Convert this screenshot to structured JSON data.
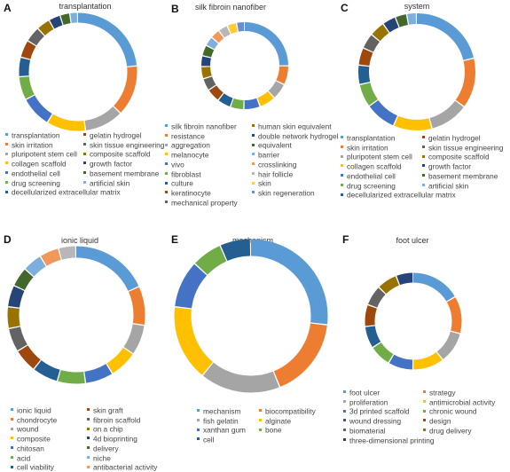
{
  "chart_data": [
    {
      "id": "A",
      "type": "pie",
      "letter": "A",
      "title": "transplantation",
      "slices": [
        {
          "label": "transplantation",
          "value": 22.0,
          "color": "#5B9BD5"
        },
        {
          "label": "skin irritation",
          "value": 13.0,
          "color": "#ED7D31"
        },
        {
          "label": "pluripotent stem cell",
          "value": 10.0,
          "color": "#A5A5A5"
        },
        {
          "label": "collagen scaffold",
          "value": 10.0,
          "color": "#FFC000"
        },
        {
          "label": "endothelial cell",
          "value": 8.0,
          "color": "#4472C4"
        },
        {
          "label": "drug screening",
          "value": 6.0,
          "color": "#70AD47"
        },
        {
          "label": "decellularized extracellular matrix",
          "value": 5.0,
          "color": "#255E91"
        },
        {
          "label": "gelatin hydrogel",
          "value": 4.5,
          "color": "#9E480E"
        },
        {
          "label": "skin tissue engineering",
          "value": 4.0,
          "color": "#636363"
        },
        {
          "label": "composite scaffold",
          "value": 3.5,
          "color": "#997300"
        },
        {
          "label": "growth factor",
          "value": 3.0,
          "color": "#264478"
        },
        {
          "label": "basement membrane",
          "value": 2.5,
          "color": "#43682B"
        },
        {
          "label": "artificial skin",
          "value": 2.0,
          "color": "#7CAFDD"
        }
      ],
      "legend_layout": [
        {
          "i": 0,
          "col": 0,
          "row": 0
        },
        {
          "i": 1,
          "col": 0,
          "row": 1
        },
        {
          "i": 2,
          "col": 0,
          "row": 2
        },
        {
          "i": 3,
          "col": 0,
          "row": 3
        },
        {
          "i": 4,
          "col": 0,
          "row": 4
        },
        {
          "i": 5,
          "col": 0,
          "row": 5
        },
        {
          "i": 6,
          "col": 0,
          "row": 6
        },
        {
          "i": 7,
          "col": 1,
          "row": 0
        },
        {
          "i": 8,
          "col": 1,
          "row": 1
        },
        {
          "i": 9,
          "col": 1,
          "row": 2
        },
        {
          "i": 10,
          "col": 1,
          "row": 3
        },
        {
          "i": 11,
          "col": 1,
          "row": 4
        },
        {
          "i": 12,
          "col": 1,
          "row": 5
        }
      ]
    },
    {
      "id": "B",
      "type": "pie",
      "letter": "B",
      "title": "silk fibroin nanofiber",
      "slices": [
        {
          "label": "silk fibroin nanofiber",
          "value": 25.0,
          "color": "#5B9BD5"
        },
        {
          "label": "resistance",
          "value": 7.0,
          "color": "#ED7D31"
        },
        {
          "label": "aggregation",
          "value": 6.0,
          "color": "#A5A5A5"
        },
        {
          "label": "melanocyte",
          "value": 6.0,
          "color": "#FFC000"
        },
        {
          "label": "vivo",
          "value": 6.0,
          "color": "#4472C4"
        },
        {
          "label": "fibroblast",
          "value": 5.0,
          "color": "#70AD47"
        },
        {
          "label": "culture",
          "value": 5.0,
          "color": "#255E91"
        },
        {
          "label": "keratinocyte",
          "value": 5.0,
          "color": "#9E480E"
        },
        {
          "label": "mechanical property",
          "value": 4.5,
          "color": "#636363"
        },
        {
          "label": "human skin equivalent",
          "value": 4.5,
          "color": "#997300"
        },
        {
          "label": "double network hydrogel",
          "value": 4.0,
          "color": "#264478"
        },
        {
          "label": "equivalent",
          "value": 4.0,
          "color": "#43682B"
        },
        {
          "label": "barrier",
          "value": 3.5,
          "color": "#7CAFDD"
        },
        {
          "label": "crosslinking",
          "value": 3.5,
          "color": "#F1975A"
        },
        {
          "label": "hair follicle",
          "value": 3.5,
          "color": "#B7B7B7"
        },
        {
          "label": "skin",
          "value": 3.5,
          "color": "#FFCD33"
        },
        {
          "label": "skin regeneration",
          "value": 3.0,
          "color": "#698ED0"
        }
      ],
      "legend_layout": [
        {
          "i": 0,
          "col": 0,
          "row": 0
        },
        {
          "i": 1,
          "col": 0,
          "row": 1
        },
        {
          "i": 2,
          "col": 0,
          "row": 2
        },
        {
          "i": 3,
          "col": 0,
          "row": 3
        },
        {
          "i": 4,
          "col": 0,
          "row": 4
        },
        {
          "i": 5,
          "col": 0,
          "row": 5
        },
        {
          "i": 6,
          "col": 0,
          "row": 6
        },
        {
          "i": 7,
          "col": 0,
          "row": 7
        },
        {
          "i": 8,
          "col": 0,
          "row": 8
        },
        {
          "i": 9,
          "col": 1,
          "row": 0
        },
        {
          "i": 10,
          "col": 1,
          "row": 1
        },
        {
          "i": 11,
          "col": 1,
          "row": 2
        },
        {
          "i": 12,
          "col": 1,
          "row": 3
        },
        {
          "i": 13,
          "col": 1,
          "row": 4
        },
        {
          "i": 14,
          "col": 1,
          "row": 5
        },
        {
          "i": 15,
          "col": 1,
          "row": 6
        },
        {
          "i": 16,
          "col": 1,
          "row": 7
        }
      ]
    },
    {
      "id": "C",
      "type": "pie",
      "letter": "C",
      "title": "system",
      "slices": [
        {
          "label": "transplantation",
          "value": 20.0,
          "color": "#5B9BD5"
        },
        {
          "label": "skin irritation",
          "value": 13.0,
          "color": "#ED7D31"
        },
        {
          "label": "pluripotent stem cell",
          "value": 10.0,
          "color": "#A5A5A5"
        },
        {
          "label": "collagen scaffold",
          "value": 10.0,
          "color": "#FFC000"
        },
        {
          "label": "endothelial cell",
          "value": 8.0,
          "color": "#4472C4"
        },
        {
          "label": "drug screening",
          "value": 6.0,
          "color": "#70AD47"
        },
        {
          "label": "decellularized extracellular matrix",
          "value": 5.0,
          "color": "#255E91"
        },
        {
          "label": "gelatin hydrogel",
          "value": 4.5,
          "color": "#9E480E"
        },
        {
          "label": "skin tissue engineering",
          "value": 4.0,
          "color": "#636363"
        },
        {
          "label": "composite scaffold",
          "value": 4.0,
          "color": "#997300"
        },
        {
          "label": "growth factor",
          "value": 3.5,
          "color": "#264478"
        },
        {
          "label": "basement membrane",
          "value": 3.0,
          "color": "#43682B"
        },
        {
          "label": "artificial skin",
          "value": 2.5,
          "color": "#7CAFDD"
        }
      ],
      "legend_layout": [
        {
          "i": 0,
          "col": 0,
          "row": 0
        },
        {
          "i": 1,
          "col": 0,
          "row": 1
        },
        {
          "i": 2,
          "col": 0,
          "row": 2
        },
        {
          "i": 3,
          "col": 0,
          "row": 3
        },
        {
          "i": 4,
          "col": 0,
          "row": 4
        },
        {
          "i": 5,
          "col": 0,
          "row": 5
        },
        {
          "i": 6,
          "col": 0,
          "row": 6
        },
        {
          "i": 7,
          "col": 1,
          "row": 0
        },
        {
          "i": 8,
          "col": 1,
          "row": 1
        },
        {
          "i": 9,
          "col": 1,
          "row": 2
        },
        {
          "i": 10,
          "col": 1,
          "row": 3
        },
        {
          "i": 11,
          "col": 1,
          "row": 4
        },
        {
          "i": 12,
          "col": 1,
          "row": 5
        }
      ]
    },
    {
      "id": "D",
      "type": "pie",
      "letter": "D",
      "title": "ionic liquid",
      "slices": [
        {
          "label": "ionic liquid",
          "value": 18.0,
          "color": "#5B9BD5"
        },
        {
          "label": "chondrocyte",
          "value": 9.0,
          "color": "#ED7D31"
        },
        {
          "label": "wound",
          "value": 7.0,
          "color": "#A5A5A5"
        },
        {
          "label": "composite",
          "value": 6.5,
          "color": "#FFC000"
        },
        {
          "label": "chitosan",
          "value": 6.5,
          "color": "#4472C4"
        },
        {
          "label": "acid",
          "value": 6.5,
          "color": "#70AD47"
        },
        {
          "label": "cell viability",
          "value": 6.0,
          "color": "#255E91"
        },
        {
          "label": "skin graft",
          "value": 5.5,
          "color": "#9E480E"
        },
        {
          "label": "fibroin scaffold",
          "value": 5.5,
          "color": "#636363"
        },
        {
          "label": "on a chip",
          "value": 5.0,
          "color": "#997300"
        },
        {
          "label": "4d bioprinting",
          "value": 5.0,
          "color": "#264478"
        },
        {
          "label": "delivery",
          "value": 4.5,
          "color": "#43682B"
        },
        {
          "label": "niche",
          "value": 4.5,
          "color": "#7CAFDD"
        },
        {
          "label": "antibacterial activity",
          "value": 4.5,
          "color": "#F1975A"
        },
        {
          "label": "",
          "value": 4.0,
          "color": "#B7B7B7"
        }
      ],
      "legend_layout": [
        {
          "i": 0,
          "col": 0,
          "row": 0
        },
        {
          "i": 1,
          "col": 0,
          "row": 1
        },
        {
          "i": 2,
          "col": 0,
          "row": 2
        },
        {
          "i": 3,
          "col": 0,
          "row": 3
        },
        {
          "i": 4,
          "col": 0,
          "row": 4
        },
        {
          "i": 5,
          "col": 0,
          "row": 5
        },
        {
          "i": 6,
          "col": 0,
          "row": 6
        },
        {
          "i": 7,
          "col": 1,
          "row": 0
        },
        {
          "i": 8,
          "col": 1,
          "row": 1
        },
        {
          "i": 9,
          "col": 1,
          "row": 2
        },
        {
          "i": 10,
          "col": 1,
          "row": 3
        },
        {
          "i": 11,
          "col": 1,
          "row": 4
        },
        {
          "i": 12,
          "col": 1,
          "row": 5
        },
        {
          "i": 13,
          "col": 1,
          "row": 6
        }
      ]
    },
    {
      "id": "E",
      "type": "pie",
      "letter": "E",
      "title": "mechanism",
      "slices": [
        {
          "label": "mechanism",
          "value": 27.0,
          "color": "#5B9BD5"
        },
        {
          "label": "biocompatibility",
          "value": 17.0,
          "color": "#ED7D31"
        },
        {
          "label": "fish gelatin",
          "value": 17.0,
          "color": "#A5A5A5"
        },
        {
          "label": "alginate",
          "value": 16.0,
          "color": "#FFC000"
        },
        {
          "label": "xanthan gum",
          "value": 10.0,
          "color": "#4472C4"
        },
        {
          "label": "bone",
          "value": 6.5,
          "color": "#70AD47"
        },
        {
          "label": "cell",
          "value": 6.5,
          "color": "#255E91"
        }
      ],
      "legend_layout": [
        {
          "i": 0,
          "col": 0,
          "row": 0
        },
        {
          "i": 2,
          "col": 0,
          "row": 1
        },
        {
          "i": 4,
          "col": 0,
          "row": 2
        },
        {
          "i": 6,
          "col": 0,
          "row": 3
        },
        {
          "i": 1,
          "col": 1,
          "row": 0
        },
        {
          "i": 3,
          "col": 1,
          "row": 1
        },
        {
          "i": 5,
          "col": 1,
          "row": 2
        }
      ]
    },
    {
      "id": "F",
      "type": "pie",
      "letter": "F",
      "title": "foot ulcer",
      "slices": [
        {
          "label": "foot ulcer",
          "value": 16.0,
          "color": "#5B9BD5"
        },
        {
          "label": "strategy",
          "value": 12.0,
          "color": "#ED7D31"
        },
        {
          "label": "proliferation",
          "value": 10.0,
          "color": "#A5A5A5"
        },
        {
          "label": "antimicrobial activity",
          "value": 10.0,
          "color": "#FFC000"
        },
        {
          "label": "3d printed scaffold",
          "value": 8.0,
          "color": "#4472C4"
        },
        {
          "label": "chronic wound",
          "value": 7.0,
          "color": "#70AD47"
        },
        {
          "label": "wound dressing",
          "value": 7.0,
          "color": "#255E91"
        },
        {
          "label": "design",
          "value": 7.0,
          "color": "#9E480E"
        },
        {
          "label": "biomaterial",
          "value": 6.5,
          "color": "#636363"
        },
        {
          "label": "drug delivery",
          "value": 6.5,
          "color": "#997300"
        },
        {
          "label": "three-dimensional printing",
          "value": 5.5,
          "color": "#264478"
        }
      ],
      "legend_layout": [
        {
          "i": 0,
          "col": 0,
          "row": 0
        },
        {
          "i": 2,
          "col": 0,
          "row": 1
        },
        {
          "i": 4,
          "col": 0,
          "row": 2
        },
        {
          "i": 6,
          "col": 0,
          "row": 3
        },
        {
          "i": 8,
          "col": 0,
          "row": 4
        },
        {
          "i": 10,
          "col": 0,
          "row": 5
        },
        {
          "i": 1,
          "col": 1,
          "row": 0
        },
        {
          "i": 3,
          "col": 1,
          "row": 1
        },
        {
          "i": 5,
          "col": 1,
          "row": 2
        },
        {
          "i": 7,
          "col": 1,
          "row": 3
        },
        {
          "i": 9,
          "col": 1,
          "row": 4
        }
      ]
    }
  ]
}
